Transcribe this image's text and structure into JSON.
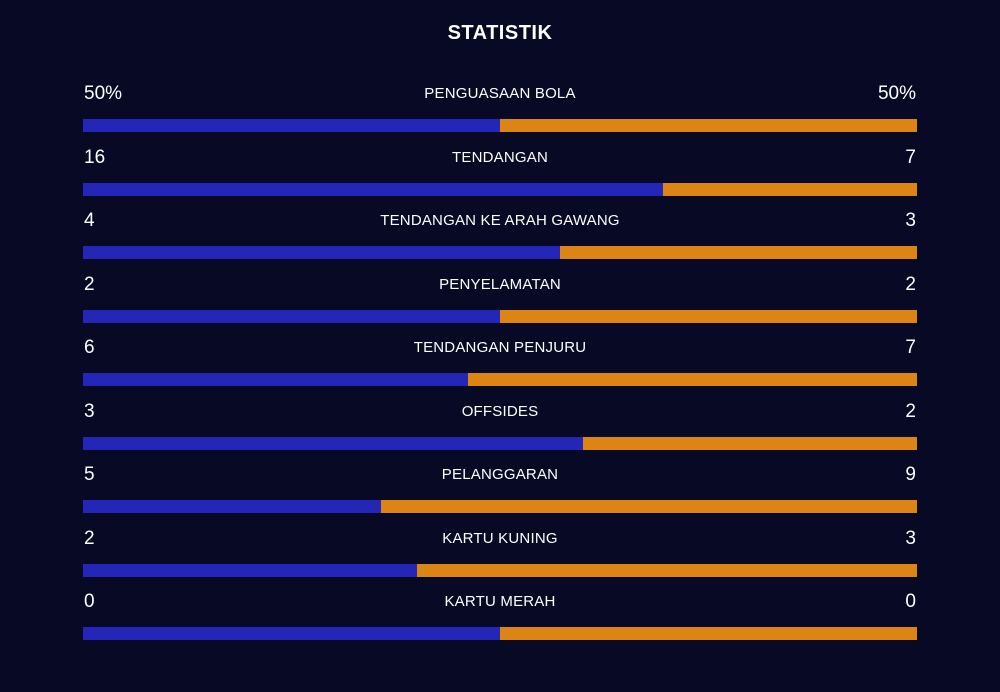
{
  "title": "STATISTIK",
  "colors": {
    "background": "#080925",
    "home": "#2426b8",
    "away": "#dc8515"
  },
  "stats": [
    {
      "label": "PENGUASAAN BOLA",
      "home": "50%",
      "away": "50%",
      "home_share": 0.5
    },
    {
      "label": "TENDANGAN",
      "home": "16",
      "away": "7",
      "home_share": 0.6957
    },
    {
      "label": "TENDANGAN KE ARAH GAWANG",
      "home": "4",
      "away": "3",
      "home_share": 0.5714
    },
    {
      "label": "PENYELAMATAN",
      "home": "2",
      "away": "2",
      "home_share": 0.5
    },
    {
      "label": "TENDANGAN PENJURU",
      "home": "6",
      "away": "7",
      "home_share": 0.4615
    },
    {
      "label": "OFFSIDES",
      "home": "3",
      "away": "2",
      "home_share": 0.6
    },
    {
      "label": "PELANGGARAN",
      "home": "5",
      "away": "9",
      "home_share": 0.3571
    },
    {
      "label": "KARTU KUNING",
      "home": "2",
      "away": "3",
      "home_share": 0.4
    },
    {
      "label": "KARTU MERAH",
      "home": "0",
      "away": "0",
      "home_share": 0.5
    }
  ]
}
